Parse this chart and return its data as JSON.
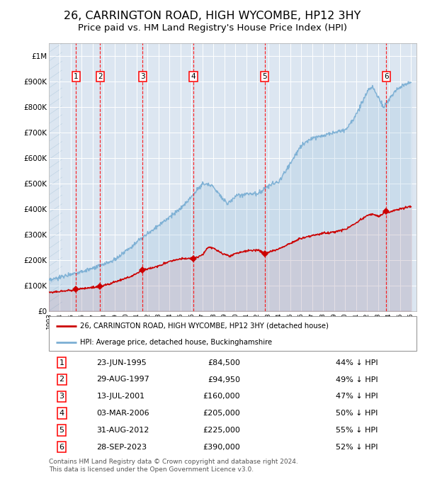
{
  "title": "26, CARRINGTON ROAD, HIGH WYCOMBE, HP12 3HY",
  "subtitle": "Price paid vs. HM Land Registry's House Price Index (HPI)",
  "title_fontsize": 11.5,
  "subtitle_fontsize": 9.5,
  "background_color": "#ffffff",
  "plot_bg_color": "#dce6f1",
  "grid_color": "#ffffff",
  "sale_color": "#cc0000",
  "hpi_color": "#7bafd4",
  "purchases": [
    {
      "num": 1,
      "date_num": 1995.48,
      "price": 84500,
      "label": "23-JUN-1995",
      "pct": "44%"
    },
    {
      "num": 2,
      "date_num": 1997.66,
      "price": 94950,
      "label": "29-AUG-1997",
      "pct": "49%"
    },
    {
      "num": 3,
      "date_num": 2001.53,
      "price": 160000,
      "label": "13-JUL-2001",
      "pct": "47%"
    },
    {
      "num": 4,
      "date_num": 2006.17,
      "price": 205000,
      "label": "03-MAR-2006",
      "pct": "50%"
    },
    {
      "num": 5,
      "date_num": 2012.66,
      "price": 225000,
      "label": "31-AUG-2012",
      "pct": "55%"
    },
    {
      "num": 6,
      "date_num": 2023.74,
      "price": 390000,
      "label": "28-SEP-2023",
      "pct": "52%"
    }
  ],
  "xlim": [
    1993.0,
    2026.5
  ],
  "ylim": [
    0,
    1050000
  ],
  "yticks": [
    0,
    100000,
    200000,
    300000,
    400000,
    500000,
    600000,
    700000,
    800000,
    900000,
    1000000
  ],
  "ytick_labels": [
    "£0",
    "£100K",
    "£200K",
    "£300K",
    "£400K",
    "£500K",
    "£600K",
    "£700K",
    "£800K",
    "£900K",
    "£1M"
  ],
  "legend_sale_label": "26, CARRINGTON ROAD, HIGH WYCOMBE, HP12 3HY (detached house)",
  "legend_hpi_label": "HPI: Average price, detached house, Buckinghamshire",
  "table_rows": [
    [
      1,
      "23-JUN-1995",
      "£84,500",
      "44% ↓ HPI"
    ],
    [
      2,
      "29-AUG-1997",
      "£94,950",
      "49% ↓ HPI"
    ],
    [
      3,
      "13-JUL-2001",
      "£160,000",
      "47% ↓ HPI"
    ],
    [
      4,
      "03-MAR-2006",
      "£205,000",
      "50% ↓ HPI"
    ],
    [
      5,
      "31-AUG-2012",
      "£225,000",
      "55% ↓ HPI"
    ],
    [
      6,
      "28-SEP-2023",
      "£390,000",
      "52% ↓ HPI"
    ]
  ],
  "footer": "Contains HM Land Registry data © Crown copyright and database right 2024.\nThis data is licensed under the Open Government Licence v3.0."
}
